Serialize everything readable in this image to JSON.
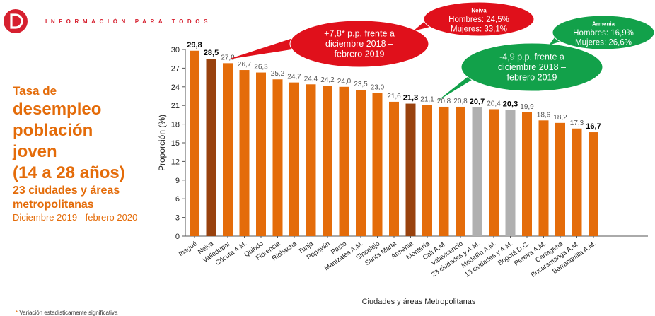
{
  "header": {
    "brand": "INFORMACIÓN PARA TODOS"
  },
  "side": {
    "line1": "Tasa de",
    "line2": "desempleo",
    "line3": "población",
    "line4": "joven",
    "line5": "(14 a 28 años)",
    "line6": "23 ciudades y áreas",
    "line7": "metropolitanas",
    "line8": "Diciembre 2019 - febrero 2020"
  },
  "footnote": "* Variación estadísticamente significativa",
  "colors": {
    "orange": "#e46c0a",
    "brown": "#99420e",
    "gray": "#b0b0b0",
    "red": "#e0101b",
    "green": "#12a14a",
    "brand": "#d6202f"
  },
  "callouts": {
    "neiva_change": [
      "+7,8* p.p. frente a",
      "diciembre 2018 –",
      "febrero 2019"
    ],
    "neiva_detail": {
      "title": "Neiva",
      "lines": [
        "Hombres: 24,5%",
        "Mujeres: 33,1%"
      ]
    },
    "armenia_change": [
      "-4,9 p.p. frente a",
      "diciembre 2018 –",
      "febrero 2019"
    ],
    "armenia_detail": {
      "title": "Armenia",
      "lines": [
        "Hombres: 16,9%",
        "Mujeres: 26,6%"
      ]
    }
  },
  "chart_data": {
    "type": "bar",
    "xlabel": "Ciudades y áreas Metropolitanas",
    "ylabel": "Proporción (%)",
    "ylim": [
      0,
      30
    ],
    "yticks": [
      0,
      3,
      6,
      9,
      12,
      15,
      18,
      21,
      24,
      27,
      30
    ],
    "grid": false,
    "categories": [
      "Ibagué",
      "Neiva",
      "Valledupar",
      "Cúcuta A.M.",
      "Quibdó",
      "Florencia",
      "Riohacha",
      "Tunja",
      "Popayán",
      "Pasto",
      "Manizales A.M.",
      "Sincelejo",
      "Santa Marta",
      "Armenia",
      "Montería",
      "Cali A.M.",
      "Villavicencio",
      "23 ciudades y A.M.",
      "Medellín A.M.",
      "13 ciudades y A.M.",
      "Bogotá D.C.",
      "Pereira A.M.",
      "Cartagena",
      "Bucaramanga A.M.",
      "Barranquilla A.M."
    ],
    "values": [
      29.8,
      28.5,
      27.8,
      26.7,
      26.3,
      25.2,
      24.7,
      24.4,
      24.2,
      24.0,
      23.5,
      23.0,
      21.6,
      21.3,
      21.1,
      20.8,
      20.8,
      20.7,
      20.4,
      20.3,
      19.9,
      18.6,
      18.2,
      17.3,
      16.7
    ],
    "labels": [
      "29,8",
      "28,5",
      "27,8",
      "26,7",
      "26,3",
      "25,2",
      "24,7",
      "24,4",
      "24,2",
      "24,0",
      "23,5",
      "23,0",
      "21,6",
      "21,3",
      "21,1",
      "20,8",
      "20,8",
      "20,7",
      "20,4",
      "20,3",
      "19,9",
      "18,6",
      "18,2",
      "17,3",
      "16,7"
    ],
    "bold": [
      true,
      true,
      false,
      false,
      false,
      false,
      false,
      false,
      false,
      false,
      false,
      false,
      false,
      true,
      false,
      false,
      false,
      true,
      false,
      true,
      false,
      false,
      false,
      false,
      true
    ],
    "bar_colors": [
      "orange",
      "brown",
      "orange",
      "orange",
      "orange",
      "orange",
      "orange",
      "orange",
      "orange",
      "orange",
      "orange",
      "orange",
      "orange",
      "brown",
      "orange",
      "orange",
      "orange",
      "gray",
      "orange",
      "gray",
      "orange",
      "orange",
      "orange",
      "orange",
      "orange"
    ]
  }
}
